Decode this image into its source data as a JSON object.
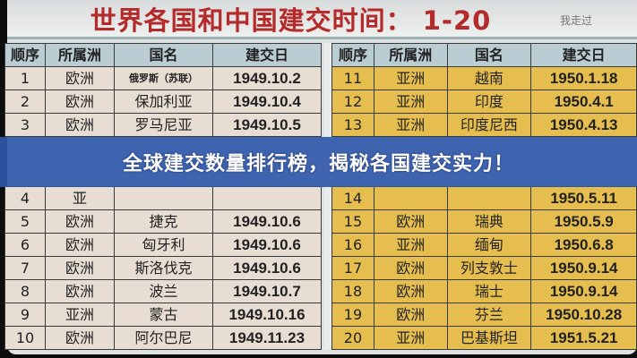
{
  "title": "世界各国和中国建交时间： 1-20",
  "banner": "全球建交数量排行榜，揭秘各国建交实力！",
  "watermark": "我走过",
  "headers": [
    "顺序",
    "所属洲",
    "国名",
    "建交日"
  ],
  "left_rows": [
    [
      "1",
      "欧洲",
      "俄罗斯（苏联）",
      "1949.10.2"
    ],
    [
      "2",
      "欧洲",
      "保加利亚",
      "1949.10.4"
    ],
    [
      "3",
      "欧洲",
      "罗马尼亚",
      "1949.10.5"
    ],
    [
      "4",
      "亚",
      "",
      ""
    ],
    [
      "5",
      "欧洲",
      "捷克",
      "1949.10.6"
    ],
    [
      "6",
      "欧洲",
      "匈牙利",
      "1949.10.6"
    ],
    [
      "7",
      "欧洲",
      "斯洛伐克",
      "1949.10.6"
    ],
    [
      "8",
      "欧洲",
      "波兰",
      "1949.10.7"
    ],
    [
      "9",
      "亚洲",
      "蒙古",
      "1949.10.16"
    ],
    [
      "10",
      "欧洲",
      "阿尔巴尼",
      "1949.11.23"
    ]
  ],
  "right_rows": [
    [
      "11",
      "亚洲",
      "越南",
      "1950.1.18"
    ],
    [
      "12",
      "亚洲",
      "印度",
      "1950.4.1"
    ],
    [
      "13",
      "亚洲",
      "印度尼西",
      "1950.4.13"
    ],
    [
      "14",
      "",
      "",
      "1950.5.11"
    ],
    [
      "15",
      "欧洲",
      "瑞典",
      "1950.5.9"
    ],
    [
      "16",
      "亚洲",
      "缅甸",
      "1950.6.8"
    ],
    [
      "17",
      "欧洲",
      "列支敦士",
      "1950.9.14"
    ],
    [
      "18",
      "欧洲",
      "瑞士",
      "1950.9.14"
    ],
    [
      "19",
      "欧洲",
      "芬兰",
      "1950.10.28"
    ],
    [
      "20",
      "亚洲",
      "巴基斯坦",
      "1951.5.21"
    ]
  ],
  "colors": {
    "title": "#b52a2a",
    "header": "#b9cdd3",
    "left_rows": "#e7ddd3",
    "right_rows": "#e6bd4f",
    "banner": "#3058aa"
  }
}
